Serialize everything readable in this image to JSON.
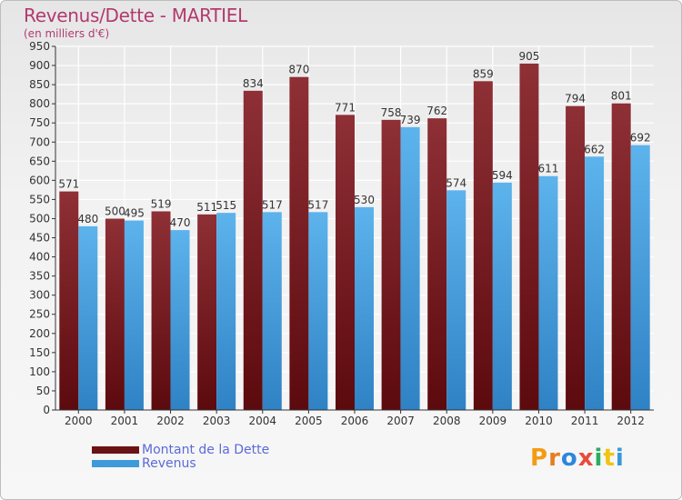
{
  "chart_data": {
    "type": "bar",
    "title": "Revenus/Dette - MARTIEL",
    "subtitle": "(en milliers d'€)",
    "categories": [
      "2000",
      "2001",
      "2002",
      "2003",
      "2004",
      "2005",
      "2006",
      "2007",
      "2008",
      "2009",
      "2010",
      "2011",
      "2012"
    ],
    "series": [
      {
        "name": "Montant de la Dette",
        "color": "#7a1a1e",
        "values": [
          571,
          500,
          519,
          511,
          834,
          870,
          771,
          758,
          762,
          859,
          905,
          794,
          801
        ]
      },
      {
        "name": "Revenus",
        "color": "#3f9ad9",
        "values": [
          480,
          495,
          470,
          515,
          517,
          517,
          530,
          739,
          574,
          594,
          611,
          662,
          692
        ]
      }
    ],
    "ylim": [
      0,
      950
    ],
    "yticks": [
      0,
      50,
      100,
      150,
      200,
      250,
      300,
      350,
      400,
      450,
      500,
      550,
      600,
      650,
      700,
      750,
      800,
      850,
      900,
      950
    ],
    "grid": true,
    "legend_position": "bottom-left"
  },
  "brand": {
    "logo_text": "Proxiti"
  }
}
